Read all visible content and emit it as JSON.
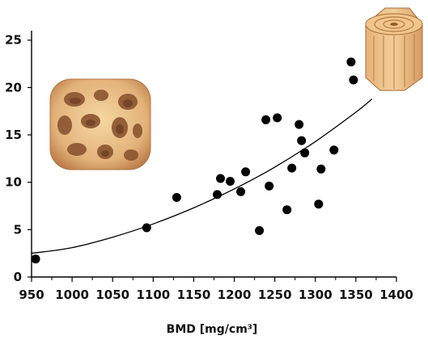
{
  "chart_data": {
    "type": "scatter",
    "xlabel": "BMD [mg/cm³]",
    "ylabel": "",
    "title": "",
    "xlim": [
      950,
      1400
    ],
    "ylim": [
      0,
      26
    ],
    "x_ticks": [
      "950",
      "1000",
      "1050",
      "1100",
      "1150",
      "1200",
      "1250",
      "1300",
      "1350",
      "1400"
    ],
    "y_ticks": [
      "0",
      "5",
      "10",
      "15",
      "20",
      "25"
    ],
    "grid": false,
    "series": [
      {
        "points": [
          {
            "x": 955,
            "y": 1.9
          },
          {
            "x": 1092,
            "y": 5.2
          },
          {
            "x": 1129,
            "y": 8.4
          },
          {
            "x": 1179,
            "y": 8.7
          },
          {
            "x": 1183,
            "y": 10.4
          },
          {
            "x": 1195,
            "y": 10.1
          },
          {
            "x": 1208,
            "y": 9.0
          },
          {
            "x": 1214,
            "y": 11.1
          },
          {
            "x": 1231,
            "y": 4.9
          },
          {
            "x": 1239,
            "y": 16.6
          },
          {
            "x": 1243,
            "y": 9.6
          },
          {
            "x": 1253,
            "y": 16.8
          },
          {
            "x": 1265,
            "y": 7.1
          },
          {
            "x": 1271,
            "y": 11.5
          },
          {
            "x": 1280,
            "y": 16.1
          },
          {
            "x": 1283,
            "y": 14.4
          },
          {
            "x": 1287,
            "y": 13.1
          },
          {
            "x": 1304,
            "y": 7.7
          },
          {
            "x": 1307,
            "y": 11.4
          },
          {
            "x": 1323,
            "y": 13.4
          },
          {
            "x": 1344,
            "y": 22.7
          },
          {
            "x": 1347,
            "y": 20.8
          }
        ]
      }
    ],
    "trend_curve": [
      {
        "x": 950,
        "y": 2.5
      },
      {
        "x": 1000,
        "y": 3.1
      },
      {
        "x": 1050,
        "y": 4.2
      },
      {
        "x": 1100,
        "y": 5.6
      },
      {
        "x": 1150,
        "y": 7.3
      },
      {
        "x": 1200,
        "y": 9.3
      },
      {
        "x": 1250,
        "y": 11.6
      },
      {
        "x": 1300,
        "y": 14.3
      },
      {
        "x": 1350,
        "y": 17.4
      },
      {
        "x": 1370,
        "y": 18.8
      }
    ],
    "illustrations": [
      "trabecular-bone-icon",
      "cortical-bone-icon"
    ],
    "colors": {
      "points": "#000000",
      "curve": "#000000",
      "axis": "#000000",
      "bone_light": "#f2c98a",
      "bone_mid": "#d9a066",
      "bone_dark": "#7a4a2a"
    }
  }
}
